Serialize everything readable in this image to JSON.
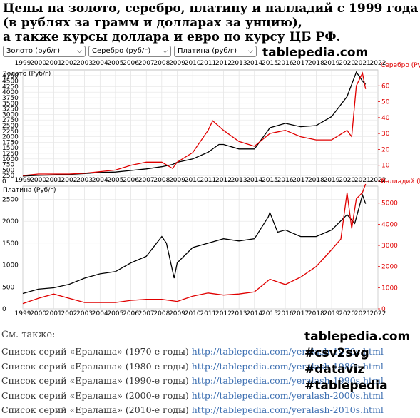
{
  "title": {
    "line1": "Цены на золото, серебро, платину и палладий с 1999 года",
    "line2": "(в рублях за грамм и долларах за унцию),",
    "line3": "а также курсы доллара и евро по курсу ЦБ РФ."
  },
  "selects": [
    {
      "label": "Золото (руб/г)"
    },
    {
      "label": "Серебро (руб/г)"
    },
    {
      "label": "Платина (руб/г)"
    }
  ],
  "brand": "tablepedia.com",
  "colors": {
    "primary": "#000000",
    "secondary": "#e00000",
    "link": "#3a6db0"
  },
  "chart_data": [
    {
      "type": "line",
      "left_label": "Золото (Руб/г)",
      "right_label": "Серебро (Ру",
      "x_ticks": [
        "1999",
        "2000",
        "2001",
        "2002",
        "2003",
        "2004",
        "2005",
        "2006",
        "2007",
        "2008",
        "2009",
        "2010",
        "2011",
        "2012",
        "2013",
        "2014",
        "2015",
        "2016",
        "2017",
        "2018",
        "2019",
        "2020",
        "2021",
        "2022"
      ],
      "y_left_ticks": [
        0,
        250,
        500,
        750,
        1000,
        1250,
        1500,
        1750,
        2000,
        2250,
        2500,
        2750,
        3000,
        3250,
        3500,
        3750,
        4000,
        4250,
        4500,
        4750
      ],
      "y_left_range": [
        0,
        5000
      ],
      "y_right_ticks": [
        0,
        10,
        20,
        30,
        40,
        50,
        60
      ],
      "y_right_range": [
        0,
        70
      ],
      "series": [
        {
          "name": "Золото (Руб/г)",
          "axis": "left",
          "color": "#000000",
          "x": [
            1999,
            2000,
            2001,
            2002,
            2003,
            2004,
            2005,
            2006,
            2007,
            2008,
            2008.7,
            2009,
            2010,
            2011,
            2011.7,
            2012,
            2013,
            2014,
            2014.9,
            2015,
            2016,
            2017,
            2018,
            2019,
            2020,
            2020.6,
            2021,
            2021.2
          ],
          "y": [
            230,
            260,
            280,
            300,
            340,
            390,
            410,
            480,
            550,
            650,
            750,
            850,
            1000,
            1300,
            1650,
            1650,
            1450,
            1450,
            2300,
            2400,
            2600,
            2450,
            2500,
            2900,
            3800,
            4900,
            4500,
            4350
          ]
        },
        {
          "name": "Серебро (Руб/г)",
          "axis": "right",
          "color": "#e00000",
          "x": [
            1999,
            2000,
            2001,
            2002,
            2003,
            2004,
            2005,
            2006,
            2007,
            2008,
            2008.7,
            2009,
            2010,
            2011,
            2011.3,
            2012,
            2013,
            2014,
            2015,
            2016,
            2017,
            2018,
            2019,
            2020,
            2020.3,
            2020.6,
            2021,
            2021.2
          ],
          "y": [
            3.5,
            4.5,
            4.5,
            4.5,
            5,
            6,
            7,
            10,
            12,
            12,
            8,
            12,
            18,
            32,
            38,
            32,
            25,
            22,
            30,
            32,
            28,
            26,
            26,
            32,
            28,
            60,
            68,
            58
          ]
        }
      ]
    },
    {
      "type": "line",
      "left_label": "Платина (Руб/г)",
      "right_label": "Палладий (Р",
      "x_ticks": [
        "1999",
        "2000",
        "2001",
        "2002",
        "2003",
        "2004",
        "2005",
        "2006",
        "2007",
        "2008",
        "2009",
        "2010",
        "2011",
        "2012",
        "2013",
        "2014",
        "2015",
        "2016",
        "2017",
        "2018",
        "2019",
        "2020",
        "2021",
        "2022"
      ],
      "y_left_ticks": [
        0,
        500,
        1000,
        1500,
        2000,
        2500
      ],
      "y_left_range": [
        0,
        2800
      ],
      "y_right_ticks": [
        0,
        1000,
        2000,
        3000,
        4000,
        5000
      ],
      "y_right_range": [
        0,
        5800
      ],
      "series": [
        {
          "name": "Платина (Руб/г)",
          "axis": "left",
          "color": "#000000",
          "x": [
            1999,
            2000,
            2001,
            2002,
            2003,
            2004,
            2005,
            2006,
            2007,
            2008,
            2008.3,
            2008.8,
            2009,
            2010,
            2011,
            2012,
            2013,
            2014,
            2014.9,
            2015,
            2015.5,
            2016,
            2017,
            2018,
            2019,
            2020,
            2020.5,
            2021,
            2021.2
          ],
          "y": [
            350,
            450,
            480,
            560,
            700,
            800,
            850,
            1050,
            1200,
            1650,
            1500,
            700,
            1050,
            1400,
            1500,
            1600,
            1550,
            1600,
            2100,
            2200,
            1750,
            1800,
            1650,
            1650,
            1800,
            2150,
            1950,
            2600,
            2400
          ]
        },
        {
          "name": "Палладий (Руб/г)",
          "axis": "right",
          "color": "#e00000",
          "x": [
            1999,
            2000,
            2001,
            2002,
            2003,
            2004,
            2005,
            2006,
            2007,
            2008,
            2009,
            2010,
            2011,
            2012,
            2013,
            2014,
            2015,
            2016,
            2017,
            2018,
            2019,
            2019.6,
            2020,
            2020.3,
            2020.6,
            2021,
            2021.2
          ],
          "y": [
            250,
            500,
            700,
            500,
            300,
            300,
            300,
            400,
            450,
            450,
            350,
            600,
            750,
            650,
            700,
            800,
            1400,
            1150,
            1500,
            2000,
            2800,
            3300,
            5500,
            3800,
            5200,
            5500,
            5900
          ]
        }
      ]
    }
  ],
  "see_also": {
    "heading": "См. также:",
    "items": [
      {
        "text": "Список серий «Ералаша» (1970-е годы) ",
        "url": "http://tablepedia.com/yeralash-1970s.html"
      },
      {
        "text": "Список серий «Ералаша» (1980-е годы) ",
        "url": "http://tablepedia.com/yeralash-1980s.html"
      },
      {
        "text": "Список серий «Ералаша» (1990-е годы) ",
        "url": "http://tablepedia.com/yeralash-1990s.html"
      },
      {
        "text": "Список серий «Ералаша» (2000-е годы) ",
        "url": "http://tablepedia.com/yeralash-2000s.html"
      },
      {
        "text": "Список серий «Ералаша» (2010-е годы) ",
        "url": "http://tablepedia.com/yeralash-2010s.html"
      }
    ]
  },
  "tags": [
    "tablepedia.com",
    "#csv2svg",
    "#dataviz",
    "#tablepedia"
  ]
}
